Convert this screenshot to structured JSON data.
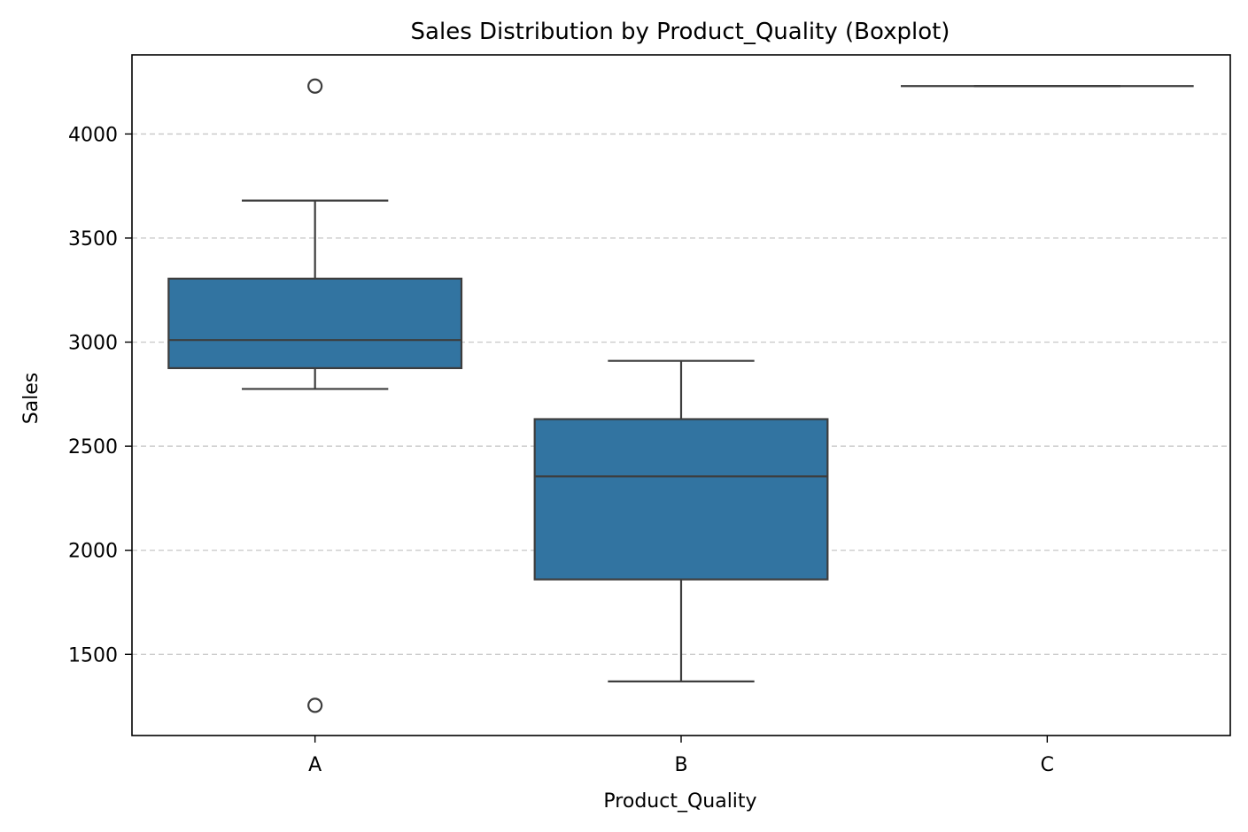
{
  "chart_data": {
    "type": "boxplot",
    "title": "Sales Distribution by Product_Quality (Boxplot)",
    "xlabel": "Product_Quality",
    "ylabel": "Sales",
    "ylim": [
      1110,
      4380
    ],
    "yticks": [
      1500,
      2000,
      2500,
      3000,
      3500,
      4000
    ],
    "categories": [
      "A",
      "B",
      "C"
    ],
    "grid": "y-dashed",
    "colors": {
      "box_fill": "#3274a1",
      "line": "#3d3d3d",
      "grid": "#cccccc",
      "axes": "#000000"
    },
    "boxes": [
      {
        "category": "A",
        "whisker_low": 2775,
        "q1": 2875,
        "median": 3010,
        "q3": 3305,
        "whisker_high": 3680,
        "outliers": [
          4230,
          1255
        ]
      },
      {
        "category": "B",
        "whisker_low": 1370,
        "q1": 1860,
        "median": 2355,
        "q3": 2630,
        "whisker_high": 2910,
        "outliers": []
      },
      {
        "category": "C",
        "whisker_low": 4230,
        "q1": 4230,
        "median": 4230,
        "q3": 4230,
        "whisker_high": 4230,
        "outliers": []
      }
    ]
  }
}
